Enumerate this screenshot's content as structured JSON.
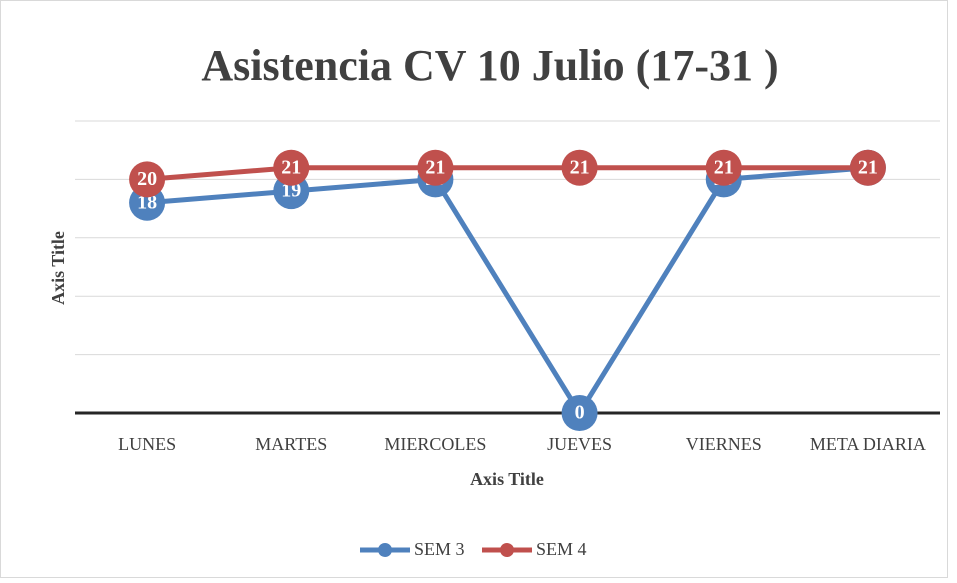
{
  "chart_data": {
    "type": "line",
    "title": "Asistencia CV 10 Julio (17-31 )",
    "x_label": "Axis Title",
    "y_label": "Axis Title",
    "categories": [
      "LUNES",
      "MARTES",
      "MIERCOLES",
      "JUEVES",
      "VIERNES",
      "META DIARIA"
    ],
    "series": [
      {
        "name": "SEM 3",
        "color": "#4f81bd",
        "values": [
          18,
          19,
          20,
          0,
          20,
          21
        ]
      },
      {
        "name": "SEM 4",
        "color": "#c0504d",
        "values": [
          20,
          21,
          21,
          21,
          21,
          21
        ]
      }
    ],
    "ylim": [
      0,
      25
    ],
    "yticks": [
      0,
      5,
      10,
      15,
      20,
      25
    ],
    "grid": true,
    "legend": "bottom"
  }
}
